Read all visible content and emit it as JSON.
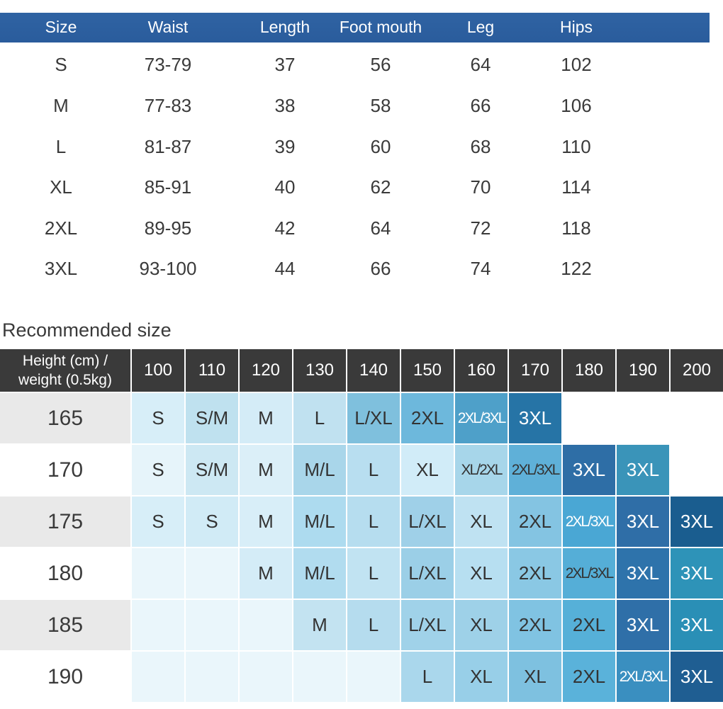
{
  "size_chart": {
    "headers": [
      "Size",
      "Waist",
      "Length",
      "Foot mouth",
      "Leg",
      "Hips"
    ],
    "rows": [
      [
        "S",
        "73-79",
        "37",
        "56",
        "64",
        "102"
      ],
      [
        "M",
        "77-83",
        "38",
        "58",
        "66",
        "106"
      ],
      [
        "L",
        "81-87",
        "39",
        "60",
        "68",
        "110"
      ],
      [
        "XL",
        "85-91",
        "40",
        "62",
        "70",
        "114"
      ],
      [
        "2XL",
        "89-95",
        "42",
        "64",
        "72",
        "118"
      ],
      [
        "3XL",
        "93-100",
        "44",
        "66",
        "74",
        "122"
      ]
    ]
  },
  "recommended": {
    "title": "Recommended size",
    "corner_line1": "Height (cm) /",
    "corner_line2": "weight (0.5kg)",
    "weights": [
      "100",
      "110",
      "120",
      "130",
      "140",
      "150",
      "160",
      "170",
      "180",
      "190",
      "200"
    ],
    "heights": [
      "165",
      "170",
      "175",
      "180",
      "185",
      "190"
    ],
    "cells": [
      [
        "S",
        "S/M",
        "M",
        "L",
        "L/XL",
        "2XL",
        "2XL/3XL",
        "3XL",
        "",
        "",
        ""
      ],
      [
        "S",
        "S/M",
        "M",
        "M/L",
        "L",
        "XL",
        "XL/2XL",
        "2XL/3XL",
        "3XL",
        "3XL",
        ""
      ],
      [
        "S",
        "S",
        "M",
        "M/L",
        "L",
        "L/XL",
        "XL",
        "2XL",
        "2XL/3XL",
        "3XL",
        "3XL"
      ],
      [
        "",
        "",
        "M",
        "M/L",
        "L",
        "L/XL",
        "XL",
        "2XL",
        "2XL/3XL",
        "3XL",
        "3XL"
      ],
      [
        "",
        "",
        "",
        "M",
        "L",
        "L/XL",
        "XL",
        "2XL",
        "2XL",
        "3XL",
        "3XL"
      ],
      [
        "",
        "",
        "",
        "",
        "",
        "L",
        "XL",
        "XL",
        "2XL",
        "2XL/3XL",
        "3XL"
      ]
    ],
    "cell_colors": [
      [
        "#d7eef8",
        "#bfe1ef",
        "#d4ecf7",
        "#c0e1f0",
        "#7fc0dd",
        "#6db8dc",
        "#4ea0c9",
        "#2674a6",
        "#ffffff",
        "#ffffff",
        "#ffffff"
      ],
      [
        "#e6f4fa",
        "#cde8f3",
        "#dbeff8",
        "#a9d6ea",
        "#b8def0",
        "#d1ecf8",
        "#a7d6ea",
        "#5fb0d8",
        "#2e6ea6",
        "#3a94b9",
        "#ffffff"
      ],
      [
        "#d7eef8",
        "#d1ebf6",
        "#d8eef8",
        "#addbef",
        "#b6ddef",
        "#9fd0e8",
        "#bfe2f2",
        "#84c4e2",
        "#4aa7d4",
        "#2f6ea7",
        "#1a5d8f"
      ],
      [
        "#eaf6fb",
        "#eaf6fb",
        "#d4ecf7",
        "#b1dcef",
        "#c1e3f2",
        "#9bcfe7",
        "#b7dff1",
        "#8ac8e4",
        "#55aed7",
        "#2e73ab",
        "#2e93b8"
      ],
      [
        "#eaf6fb",
        "#eaf6fb",
        "#eaf6fb",
        "#c3e3f1",
        "#b5dcee",
        "#a0d2e9",
        "#9ed1e8",
        "#80c3e2",
        "#56b0d8",
        "#2f6fa8",
        "#2a8fb6"
      ],
      [
        "#eaf6fb",
        "#eaf6fb",
        "#eaf6fb",
        "#eaf6fb",
        "#eaf6fb",
        "#aad7ec",
        "#98cfe8",
        "#7ec1e0",
        "#5ab2da",
        "#3a8fc0",
        "#1f5e92"
      ]
    ]
  }
}
